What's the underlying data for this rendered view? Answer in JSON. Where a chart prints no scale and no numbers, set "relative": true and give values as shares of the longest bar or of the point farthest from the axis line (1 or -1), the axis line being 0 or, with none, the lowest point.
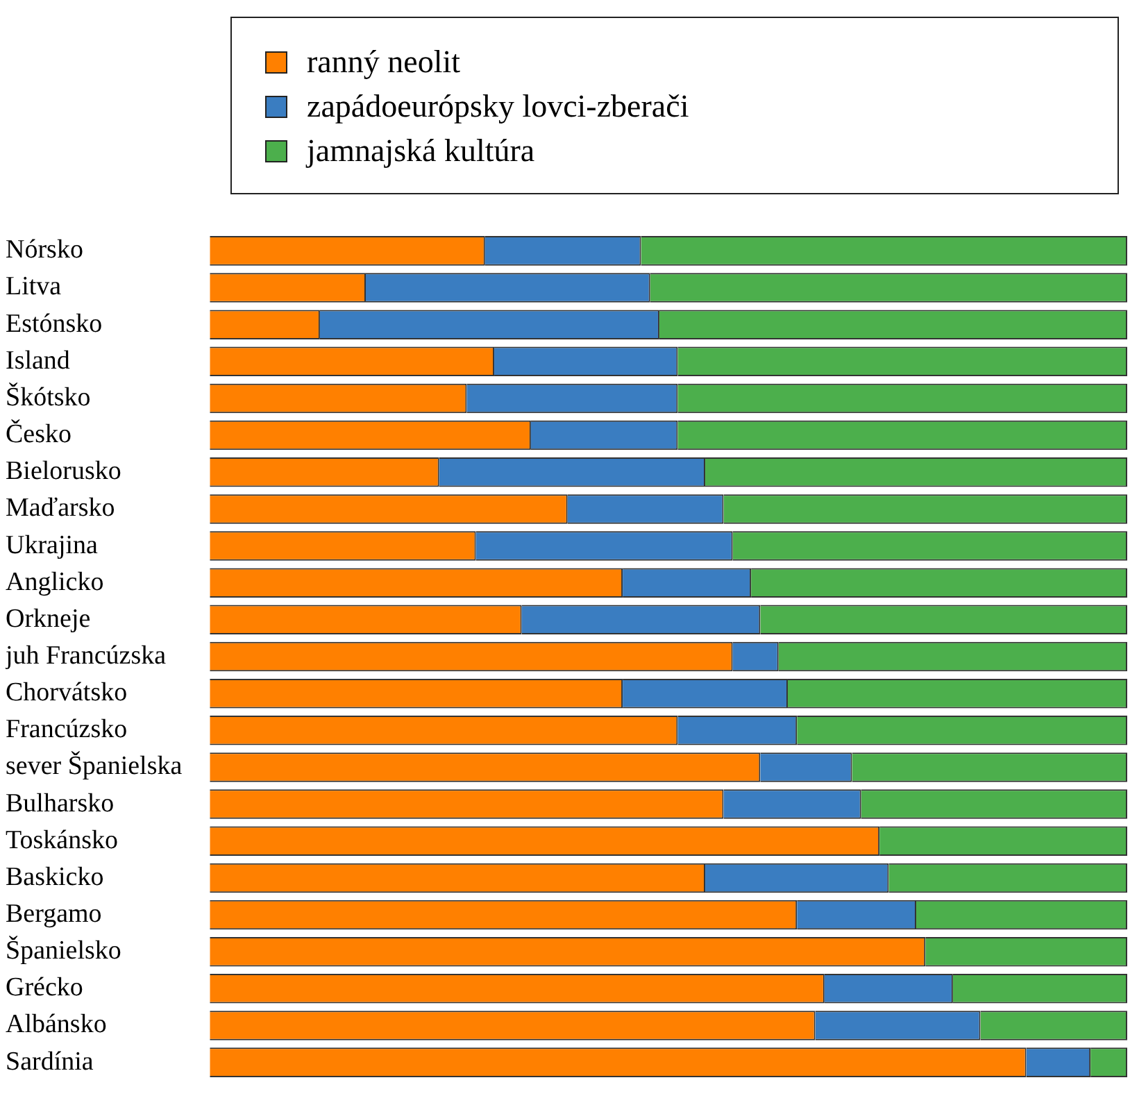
{
  "chart_data": {
    "type": "bar",
    "orientation": "horizontal",
    "stacked": true,
    "relative": true,
    "legend": "top",
    "categories": [
      "Nórsko",
      "Litva",
      "Estónsko",
      "Island",
      "Škótsko",
      "Česko",
      "Bielorusko",
      "Maďarsko",
      "Ukrajina",
      "Anglicko",
      "Orkneje",
      "juh Francúzska",
      "Chorvátsko",
      "Francúzsko",
      "sever Španielska",
      "Bulharsko",
      "Toskánsko",
      "Baskicko",
      "Bergamo",
      "Španielsko",
      "Grécko",
      "Albánsko",
      "Sardínia"
    ],
    "series": [
      {
        "name": "ranný neolit",
        "color": "#ff8000",
        "values": [
          0.3,
          0.17,
          0.12,
          0.31,
          0.28,
          0.35,
          0.25,
          0.39,
          0.29,
          0.45,
          0.34,
          0.57,
          0.45,
          0.51,
          0.6,
          0.56,
          0.73,
          0.54,
          0.64,
          0.78,
          0.67,
          0.66,
          0.89
        ]
      },
      {
        "name": "zapádoeurópsky lovci-zberači",
        "color": "#3a7dc1",
        "values": [
          0.17,
          0.31,
          0.37,
          0.2,
          0.23,
          0.16,
          0.29,
          0.17,
          0.28,
          0.14,
          0.26,
          0.05,
          0.18,
          0.13,
          0.1,
          0.15,
          0,
          0.2,
          0.13,
          0,
          0.14,
          0.18,
          0.07
        ]
      },
      {
        "name": "jamnajská kultúra",
        "color": "#4caf4c",
        "values": [
          0.53,
          0.52,
          0.51,
          0.49,
          0.49,
          0.49,
          0.46,
          0.44,
          0.43,
          0.41,
          0.4,
          0.38,
          0.37,
          0.36,
          0.3,
          0.29,
          0.27,
          0.26,
          0.23,
          0.22,
          0.19,
          0.16,
          0.04
        ]
      }
    ]
  }
}
